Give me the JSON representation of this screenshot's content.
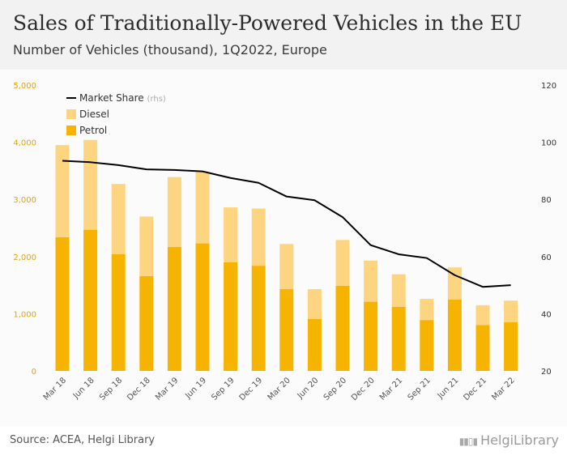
{
  "header": {
    "title": "Sales of Traditionally-Powered Vehicles in the EU",
    "subtitle": "Number of Vehicles (thousand), 1Q2022, Europe"
  },
  "footer": {
    "source": "Source: ACEA, Helgi Library",
    "logo_text": "HelgiLibrary"
  },
  "colors": {
    "petrol": "#F6B300",
    "diesel": "#FDD581",
    "market_share": "#000000",
    "left_axis_text": "#E8A400"
  },
  "chart_data": {
    "type": "bar",
    "stacked": true,
    "categories": [
      "Mar 18",
      "Jun 18",
      "Sep 18",
      "Dec 18",
      "Mar 19",
      "Jun 19",
      "Sep 19",
      "Dec 19",
      "Mar 20",
      "Jun 20",
      "Sep 20",
      "Dec 20",
      "Mar 21",
      "Sep 21",
      "Jun 21",
      "Dec 21",
      "Mar 22"
    ],
    "series": [
      {
        "name": "Petrol",
        "axis": "left",
        "values": [
          2340,
          2470,
          2040,
          1660,
          2170,
          2230,
          1900,
          1840,
          1430,
          910,
          1490,
          1210,
          1120,
          890,
          1250,
          800,
          850
        ]
      },
      {
        "name": "Diesel",
        "axis": "left",
        "values": [
          1610,
          1570,
          1230,
          1040,
          1220,
          1250,
          960,
          1000,
          790,
          520,
          800,
          720,
          570,
          370,
          560,
          350,
          380
        ]
      },
      {
        "name": "Market Share",
        "axis_note": "(rhs)",
        "axis": "right",
        "type": "line",
        "values": [
          93.5,
          93,
          92,
          90.5,
          90.3,
          89.8,
          87.5,
          85.8,
          81,
          79.7,
          73.8,
          64,
          60.8,
          59.5,
          53.5,
          49.4,
          50
        ]
      }
    ],
    "ylim_left": [
      0,
      5000
    ],
    "yticks_left": [
      "0",
      "1,000",
      "2,000",
      "3,000",
      "4,000",
      "5,000"
    ],
    "ylim_right": [
      20,
      120
    ],
    "yticks_right": [
      "20",
      "40",
      "60",
      "80",
      "100",
      "120"
    ],
    "legend": {
      "position": "top-left",
      "items": [
        "Market Share",
        "Diesel",
        "Petrol"
      ]
    },
    "grid": false
  }
}
